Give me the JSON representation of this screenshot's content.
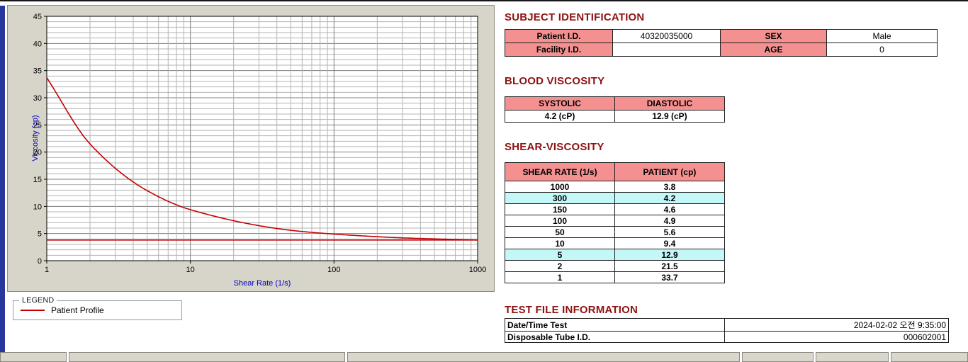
{
  "subject": {
    "title": "SUBJECT IDENTIFICATION",
    "patient_id_label": "Patient I.D.",
    "patient_id_value": "40320035000",
    "sex_label": "SEX",
    "sex_value": "Male",
    "facility_id_label": "Facility I.D.",
    "facility_id_value": "",
    "age_label": "AGE",
    "age_value": "0"
  },
  "blood_viscosity": {
    "title": "BLOOD VISCOSITY",
    "systolic_label": "SYSTOLIC",
    "diastolic_label": "DIASTOLIC",
    "systolic_value": "4.2 (cP)",
    "diastolic_value": "12.9 (cP)"
  },
  "shear_viscosity": {
    "title": "SHEAR-VISCOSITY",
    "col1_header": "SHEAR RATE (1/s)",
    "col2_header": "PATIENT (cp)",
    "rows": [
      {
        "rate": "1000",
        "value": "3.8",
        "highlight": false
      },
      {
        "rate": "300",
        "value": "4.2",
        "highlight": true
      },
      {
        "rate": "150",
        "value": "4.6",
        "highlight": false
      },
      {
        "rate": "100",
        "value": "4.9",
        "highlight": false
      },
      {
        "rate": "50",
        "value": "5.6",
        "highlight": false
      },
      {
        "rate": "10",
        "value": "9.4",
        "highlight": false
      },
      {
        "rate": "5",
        "value": "12.9",
        "highlight": true
      },
      {
        "rate": "2",
        "value": "21.5",
        "highlight": false
      },
      {
        "rate": "1",
        "value": "33.7",
        "highlight": false
      }
    ]
  },
  "test_file": {
    "title": "TEST FILE INFORMATION",
    "rows": [
      {
        "label": "Date/Time Test",
        "value": "2024-02-02   오전 9:35:00"
      },
      {
        "label": "Disposable Tube I.D.",
        "value": "000602001"
      }
    ]
  },
  "legend": {
    "frame_label": "LEGEND",
    "series_label": "Patient Profile"
  },
  "chart_data": {
    "type": "line",
    "x_scale": "log",
    "x": [
      1,
      2,
      5,
      10,
      50,
      100,
      150,
      300,
      1000
    ],
    "series": [
      {
        "name": "Patient Profile",
        "values": [
          33.7,
          21.5,
          12.9,
          9.4,
          5.6,
          4.9,
          4.6,
          4.2,
          3.8
        ]
      }
    ],
    "baseline": 3.8,
    "xlabel": "Shear Rate (1/s)",
    "ylabel": "Viscosity (cp)",
    "xlim": [
      1,
      1000
    ],
    "ylim": [
      0,
      45
    ],
    "x_ticks": [
      1,
      10,
      100,
      1000
    ],
    "y_ticks": [
      0,
      5,
      10,
      15,
      20,
      25,
      30,
      35,
      40,
      45
    ],
    "y_minor_step": 1,
    "grid": true,
    "legend_position": "bottom-left-frame",
    "line_color": "#c40000"
  },
  "colors": {
    "section_header": "#8e1212",
    "table_header_bg": "#f49090",
    "table_header_text": "#551111",
    "highlight_row_bg": "#c4f8f8",
    "series_line": "#c40000",
    "axis_label_blue": "#0000bb",
    "chart_panel_bg": "#d7d4ca"
  }
}
